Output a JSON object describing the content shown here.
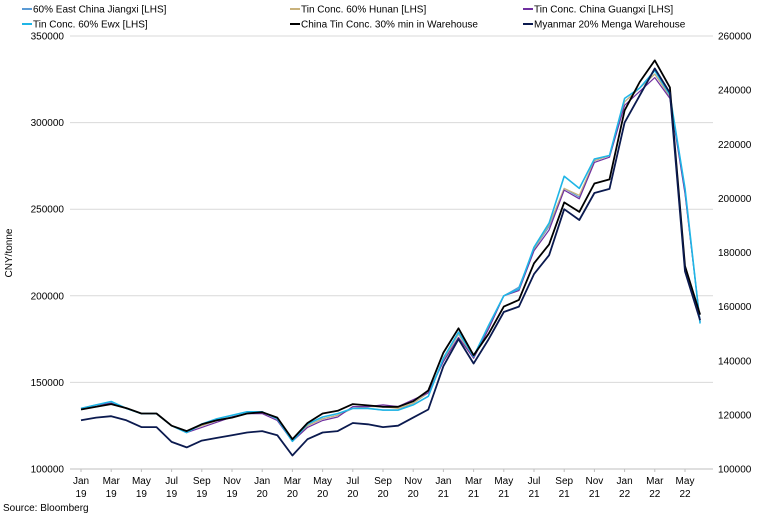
{
  "source_note": "Source: Bloomberg",
  "legend": [
    {
      "label": "60% East China Jiangxi [LHS]",
      "color": "#5b9bd5"
    },
    {
      "label": "Tin Conc. 60% Hunan [LHS]",
      "color": "#c9b27c"
    },
    {
      "label": "Tin Conc. China Guangxi [LHS]",
      "color": "#7030a0"
    },
    {
      "label": "Tin Conc. 60% Ewx [LHS]",
      "color": "#1fb5e6"
    },
    {
      "label": "China Tin Conc. 30% min in Warehouse",
      "color": "#000000"
    },
    {
      "label": "Myanmar 20% Menga Warehouse",
      "color": "#0b1a4f"
    }
  ],
  "chart_data": {
    "type": "line",
    "ylabel": "CNY/tonne",
    "x_labels": [
      [
        "Jan",
        "19"
      ],
      [
        "Mar",
        "19"
      ],
      [
        "May",
        "19"
      ],
      [
        "Jul",
        "19"
      ],
      [
        "Sep",
        "19"
      ],
      [
        "Nov",
        "19"
      ],
      [
        "Jan",
        "20"
      ],
      [
        "Mar",
        "20"
      ],
      [
        "May",
        "20"
      ],
      [
        "Jul",
        "20"
      ],
      [
        "Sep",
        "20"
      ],
      [
        "Nov",
        "20"
      ],
      [
        "Jan",
        "21"
      ],
      [
        "Mar",
        "21"
      ],
      [
        "May",
        "21"
      ],
      [
        "Jul",
        "21"
      ],
      [
        "Sep",
        "21"
      ],
      [
        "Nov",
        "21"
      ],
      [
        "Jan",
        "22"
      ],
      [
        "Mar",
        "22"
      ],
      [
        "May",
        "22"
      ]
    ],
    "left_axis": {
      "min": 100000,
      "max": 350000,
      "ticks": [
        "100000",
        "150000",
        "200000",
        "250000",
        "300000",
        "350000"
      ]
    },
    "right_axis": {
      "min": 100000,
      "max": 260000,
      "ticks": [
        "100000",
        "120000",
        "140000",
        "160000",
        "180000",
        "200000",
        "220000",
        "240000",
        "260000"
      ]
    },
    "grid": "horizontal",
    "legend_position": "top",
    "x": [
      0,
      1,
      2,
      3,
      4,
      5,
      6,
      7,
      8,
      9,
      10,
      11,
      12,
      13,
      14,
      15,
      16,
      17,
      18,
      19,
      20,
      21,
      22,
      23,
      24,
      25,
      26,
      27,
      28,
      29,
      30,
      31,
      32,
      33,
      34,
      35,
      36,
      37,
      38,
      39,
      40,
      41
    ],
    "series": [
      {
        "name": "60% East China Jiangxi [LHS]",
        "axis": "left",
        "color": "#5b9bd5",
        "width": 1.2,
        "values": [
          135000,
          137000,
          138000,
          135000,
          132000,
          132000,
          125000,
          122000,
          125000,
          128000,
          130000,
          132000,
          133000,
          129000,
          116000,
          125000,
          129000,
          131000,
          135000,
          135000,
          134000,
          134000,
          138000,
          144000,
          163000,
          178000,
          164000,
          182000,
          200000,
          205000,
          227000,
          240000,
          262000,
          257000,
          278000,
          281000,
          312000,
          320000,
          328000,
          315000,
          260000,
          185000
        ]
      },
      {
        "name": "Tin Conc. 60% Hunan [LHS]",
        "axis": "left",
        "color": "#c9b27c",
        "width": 1.2,
        "values": [
          135000,
          137000,
          138000,
          135000,
          132000,
          132000,
          125000,
          122000,
          125000,
          128000,
          130000,
          132000,
          133000,
          129000,
          116000,
          125000,
          129000,
          131000,
          135000,
          136000,
          136000,
          135000,
          138000,
          144000,
          163000,
          178000,
          164000,
          182000,
          200000,
          204000,
          227000,
          241000,
          262000,
          258000,
          278000,
          281000,
          312000,
          320000,
          328000,
          315000,
          260000,
          185000
        ]
      },
      {
        "name": "Tin Conc. China Guangxi [LHS]",
        "axis": "left",
        "color": "#7030a0",
        "width": 1.2,
        "values": [
          135000,
          137000,
          138000,
          135000,
          132000,
          132000,
          125000,
          121000,
          124000,
          127000,
          130000,
          132000,
          132000,
          128000,
          116000,
          124000,
          128000,
          130000,
          136000,
          136000,
          137000,
          136000,
          140000,
          144000,
          162000,
          176000,
          164000,
          181000,
          200000,
          203000,
          226000,
          238000,
          261000,
          256000,
          277000,
          280000,
          310000,
          318000,
          326000,
          314000,
          259000,
          185000
        ]
      },
      {
        "name": "Tin Conc. 60% Ewx [LHS]",
        "axis": "left",
        "color": "#1fb5e6",
        "width": 1.6,
        "values": [
          135000,
          137000,
          139000,
          135000,
          132000,
          132000,
          125000,
          121000,
          126000,
          129000,
          131000,
          133000,
          133000,
          129000,
          116000,
          126000,
          130000,
          132000,
          135000,
          135000,
          134000,
          134000,
          137000,
          142000,
          164000,
          179000,
          165000,
          183000,
          200000,
          204000,
          228000,
          242000,
          269000,
          262000,
          279000,
          281000,
          314000,
          320000,
          330000,
          316000,
          262000,
          184000
        ]
      },
      {
        "name": "China Tin Conc. 30% min in Warehouse",
        "axis": "right",
        "color": "#000000",
        "width": 1.8,
        "values": [
          122000,
          123000,
          124000,
          122500,
          120500,
          120500,
          116000,
          114000,
          116500,
          118000,
          119000,
          120500,
          121000,
          119000,
          111000,
          117000,
          120500,
          121500,
          124000,
          123500,
          123000,
          123000,
          125000,
          129000,
          143000,
          152000,
          142000,
          150000,
          160000,
          162500,
          176000,
          183000,
          198500,
          195000,
          205500,
          207000,
          232500,
          243000,
          251000,
          241000,
          175000,
          157000
        ]
      },
      {
        "name": "Myanmar 20% Menga Warehouse",
        "axis": "right",
        "color": "#0b1a4f",
        "width": 1.8,
        "values": [
          118000,
          119000,
          119500,
          118000,
          115500,
          115500,
          110000,
          108000,
          110500,
          111500,
          112500,
          113500,
          114000,
          112500,
          105000,
          111000,
          113500,
          114000,
          117000,
          116500,
          115500,
          116000,
          119000,
          122000,
          138000,
          148000,
          139000,
          148000,
          158000,
          160000,
          172000,
          179000,
          196000,
          192000,
          202000,
          203500,
          228000,
          238000,
          248000,
          239000,
          173000,
          155000
        ]
      }
    ]
  }
}
